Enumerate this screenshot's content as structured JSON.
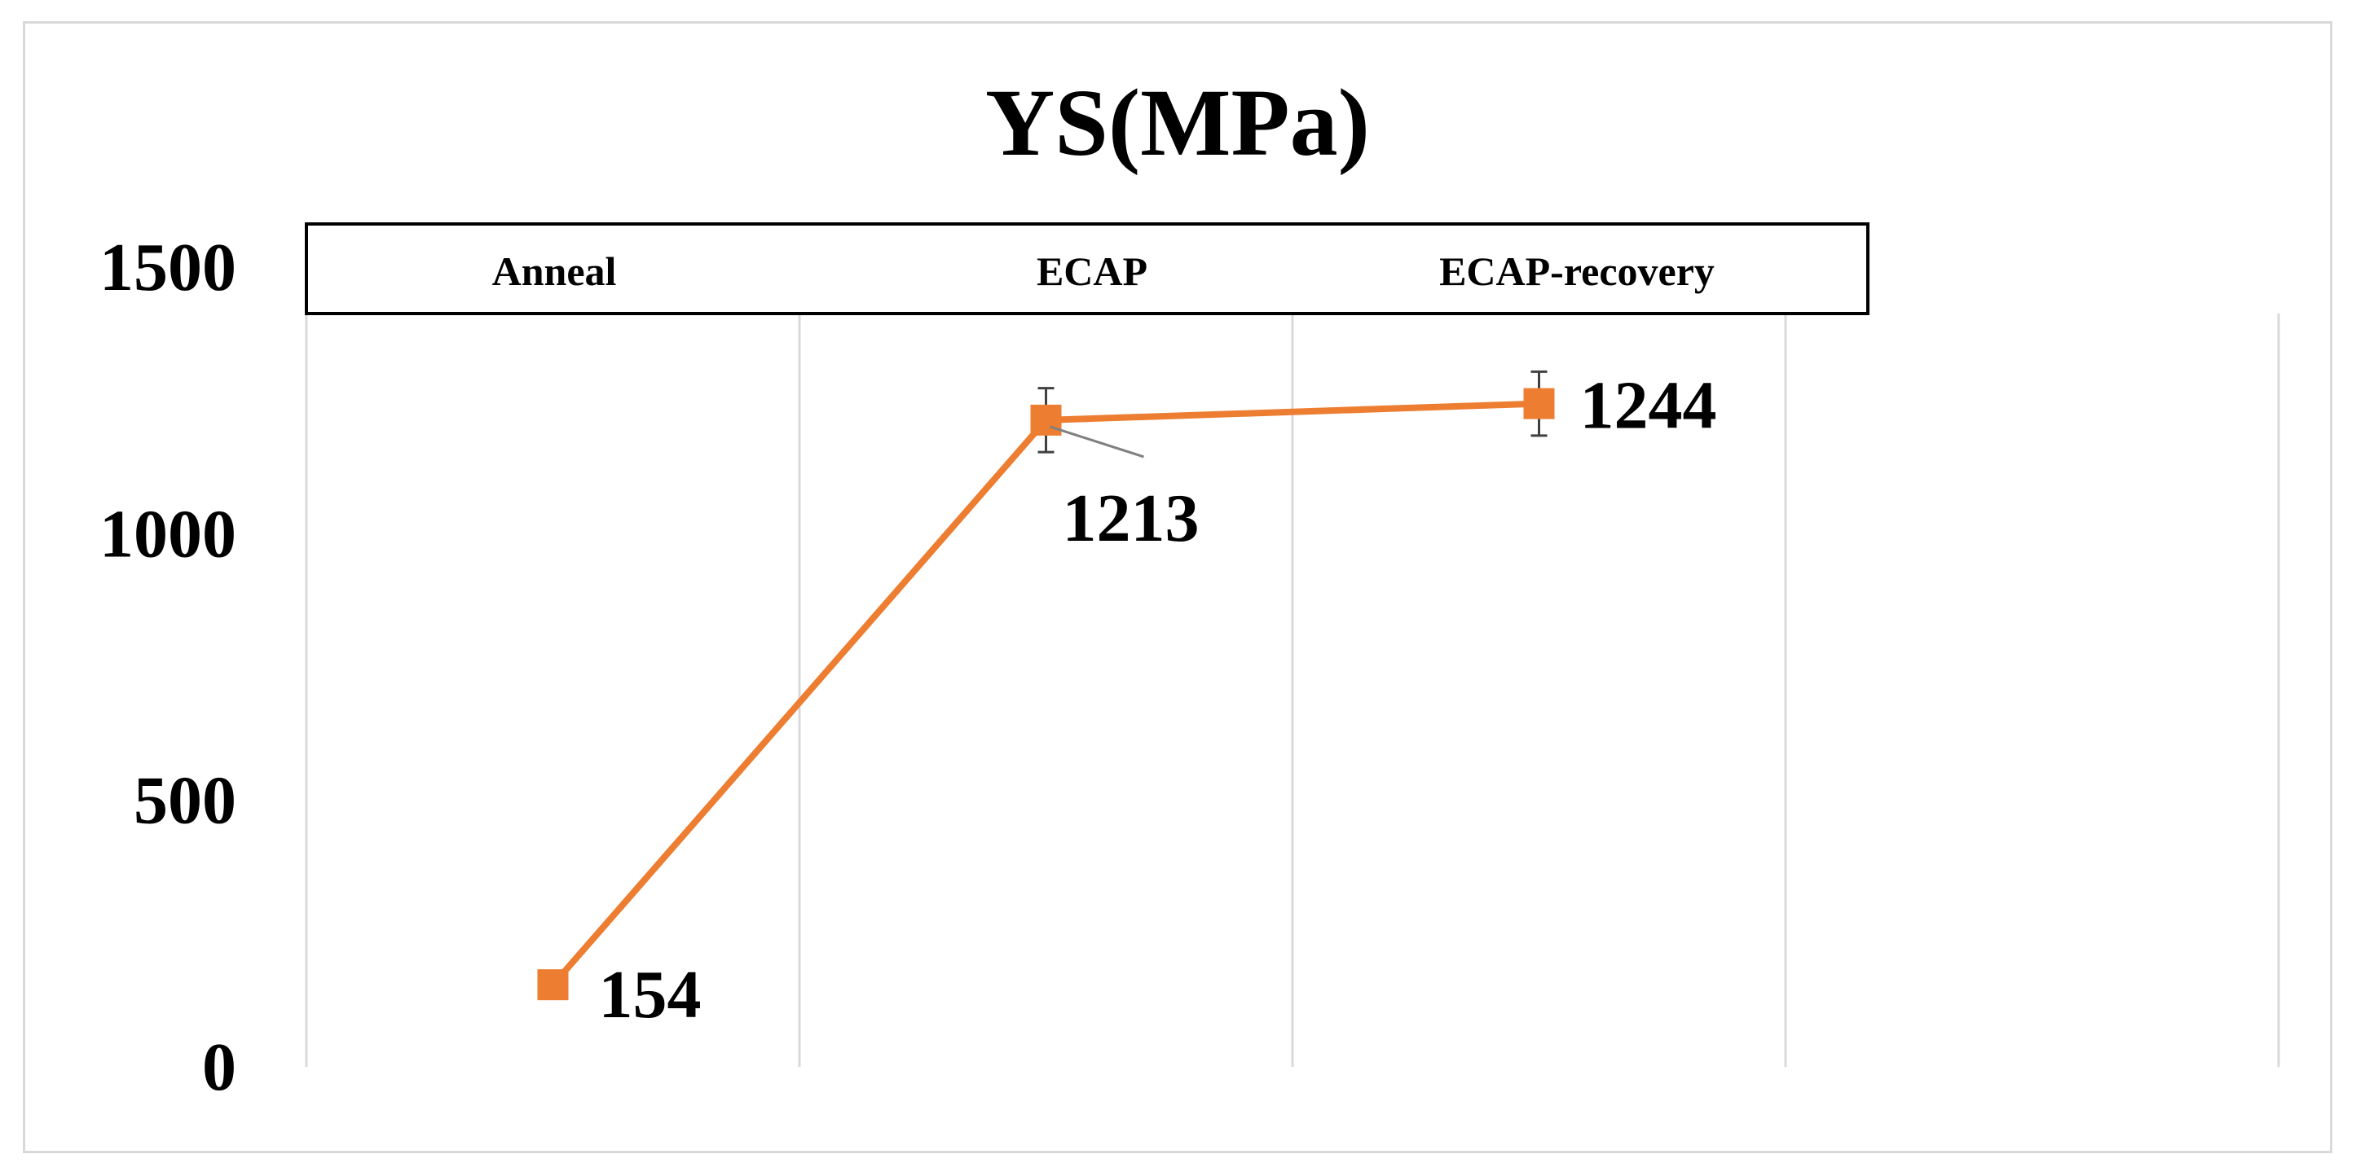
{
  "chart_data": {
    "type": "line",
    "title": "YS(MPa)",
    "xlabel": "",
    "ylabel": "",
    "categories": [
      "Anneal",
      "ECAP",
      "ECAP-recovery"
    ],
    "series": [
      {
        "values": [
          154,
          1213,
          1244
        ],
        "error": [
          null,
          60,
          60
        ],
        "color": "#ed7d31"
      }
    ],
    "data_labels": [
      "154",
      "1213",
      "1244"
    ],
    "yticks": [
      0,
      500,
      1000,
      1500
    ],
    "ylim": [
      0,
      1500
    ],
    "grid": "vertical",
    "legend": "none"
  }
}
